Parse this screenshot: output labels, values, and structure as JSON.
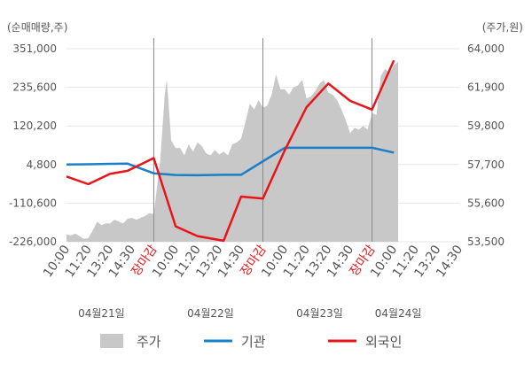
{
  "chart_data": {
    "type": "line",
    "y_left": {
      "label": "(순매매량,주)",
      "ticks": [
        "351,000",
        "235,600",
        "120,200",
        "4,800",
        "-110,600",
        "-226,000"
      ],
      "lim": [
        -226000,
        351000
      ]
    },
    "y_right": {
      "label": "(주가,원)",
      "ticks": [
        "64,000",
        "61,900",
        "59,800",
        "57,700",
        "55,600",
        "53,500"
      ],
      "lim": [
        53500,
        64000
      ]
    },
    "x_ticks": [
      {
        "label": "10:00",
        "pos": 0
      },
      {
        "label": "11:20",
        "pos": 1
      },
      {
        "label": "13:20",
        "pos": 2
      },
      {
        "label": "14:30",
        "pos": 3
      },
      {
        "label": "장마감",
        "pos": 4,
        "close": true
      },
      {
        "label": "10:00",
        "pos": 5
      },
      {
        "label": "11:20",
        "pos": 6
      },
      {
        "label": "13:20",
        "pos": 7
      },
      {
        "label": "14:30",
        "pos": 8
      },
      {
        "label": "장마감",
        "pos": 9,
        "close": true
      },
      {
        "label": "10:00",
        "pos": 10
      },
      {
        "label": "11:20",
        "pos": 11
      },
      {
        "label": "13:20",
        "pos": 12
      },
      {
        "label": "14:30",
        "pos": 13
      },
      {
        "label": "장마감",
        "pos": 14,
        "close": true
      },
      {
        "label": "10:00",
        "pos": 15
      },
      {
        "label": "11:20",
        "pos": 16
      },
      {
        "label": "13:20",
        "pos": 17
      },
      {
        "label": "14:30",
        "pos": 18
      }
    ],
    "dates": [
      {
        "label": "04월21일",
        "pos": 1.6
      },
      {
        "label": "04월22일",
        "pos": 6.6
      },
      {
        "label": "04월23일",
        "pos": 11.6
      },
      {
        "label": "04월24일",
        "pos": 15.2
      }
    ],
    "colors": {
      "price": "#c8c8c8",
      "institution": "#1a7fc6",
      "foreign": "#e8141b"
    },
    "series": [
      {
        "name": "주가",
        "kind": "area",
        "axis": "right",
        "x": [
          0,
          0.2,
          0.4,
          0.6,
          0.8,
          1.0,
          1.2,
          1.4,
          1.6,
          1.8,
          2.0,
          2.2,
          2.4,
          2.6,
          2.8,
          3.0,
          3.2,
          3.4,
          3.6,
          3.8,
          4.0,
          4.1,
          4.3,
          4.5,
          4.6,
          4.8,
          5.0,
          5.2,
          5.4,
          5.6,
          5.8,
          6.0,
          6.2,
          6.4,
          6.6,
          6.8,
          7.0,
          7.2,
          7.4,
          7.6,
          7.8,
          8.0,
          8.2,
          8.4,
          8.6,
          8.8,
          9.0,
          9.2,
          9.4,
          9.6,
          9.8,
          10.0,
          10.2,
          10.4,
          10.6,
          10.8,
          11.0,
          11.2,
          11.4,
          11.6,
          11.8,
          12.0,
          12.2,
          12.4,
          12.6,
          12.8,
          13.0,
          13.2,
          13.4,
          13.6,
          13.8,
          14.0,
          14.2,
          14.4,
          14.6,
          14.8,
          15.0,
          15.2
        ],
        "values": [
          53900,
          53850,
          53950,
          53800,
          53650,
          53700,
          54100,
          54600,
          54400,
          54500,
          54500,
          54700,
          54600,
          54500,
          54750,
          54800,
          54700,
          54800,
          54900,
          55050,
          55000,
          56000,
          58000,
          61500,
          62300,
          59000,
          58600,
          58600,
          58200,
          58800,
          58400,
          58900,
          58700,
          58300,
          58200,
          58500,
          58250,
          58400,
          58200,
          58800,
          58900,
          59100,
          60000,
          61000,
          60700,
          61200,
          60800,
          60900,
          61500,
          62600,
          61800,
          61800,
          61500,
          61900,
          62000,
          62300,
          61300,
          61400,
          61700,
          62100,
          62300,
          61600,
          61500,
          61200,
          60700,
          60100,
          59400,
          59700,
          59600,
          59800,
          59600,
          60500,
          60400,
          62500,
          62900,
          62700,
          63100,
          63300
        ]
      },
      {
        "name": "기관",
        "kind": "line",
        "axis": "left",
        "x": [
          0,
          1,
          2,
          2.8,
          4.0,
          5.0,
          6.0,
          7.2,
          8.0,
          10.0,
          11.0,
          12.0,
          13.0,
          14.0,
          15.0
        ],
        "values": [
          4800,
          5500,
          7000,
          7500,
          -21500,
          -26500,
          -27300,
          -25800,
          -26000,
          54700,
          54700,
          54700,
          54700,
          54700,
          40600
        ]
      },
      {
        "name": "외국인",
        "kind": "line",
        "axis": "left",
        "x": [
          0,
          1,
          2,
          2.8,
          4.0,
          5.0,
          6.0,
          7.2,
          8.0,
          9.0,
          10.0,
          11.0,
          12.0,
          13.0,
          14.0,
          15.0
        ],
        "values": [
          -31000,
          -54000,
          -23000,
          -14000,
          24000,
          -180000,
          -209000,
          -223000,
          -91000,
          -97000,
          47000,
          176000,
          247000,
          195000,
          169000,
          316000
        ]
      }
    ],
    "legend": [
      {
        "name": "주가",
        "kind": "area"
      },
      {
        "name": "기관",
        "kind": "line"
      },
      {
        "name": "외국인",
        "kind": "line"
      }
    ]
  }
}
